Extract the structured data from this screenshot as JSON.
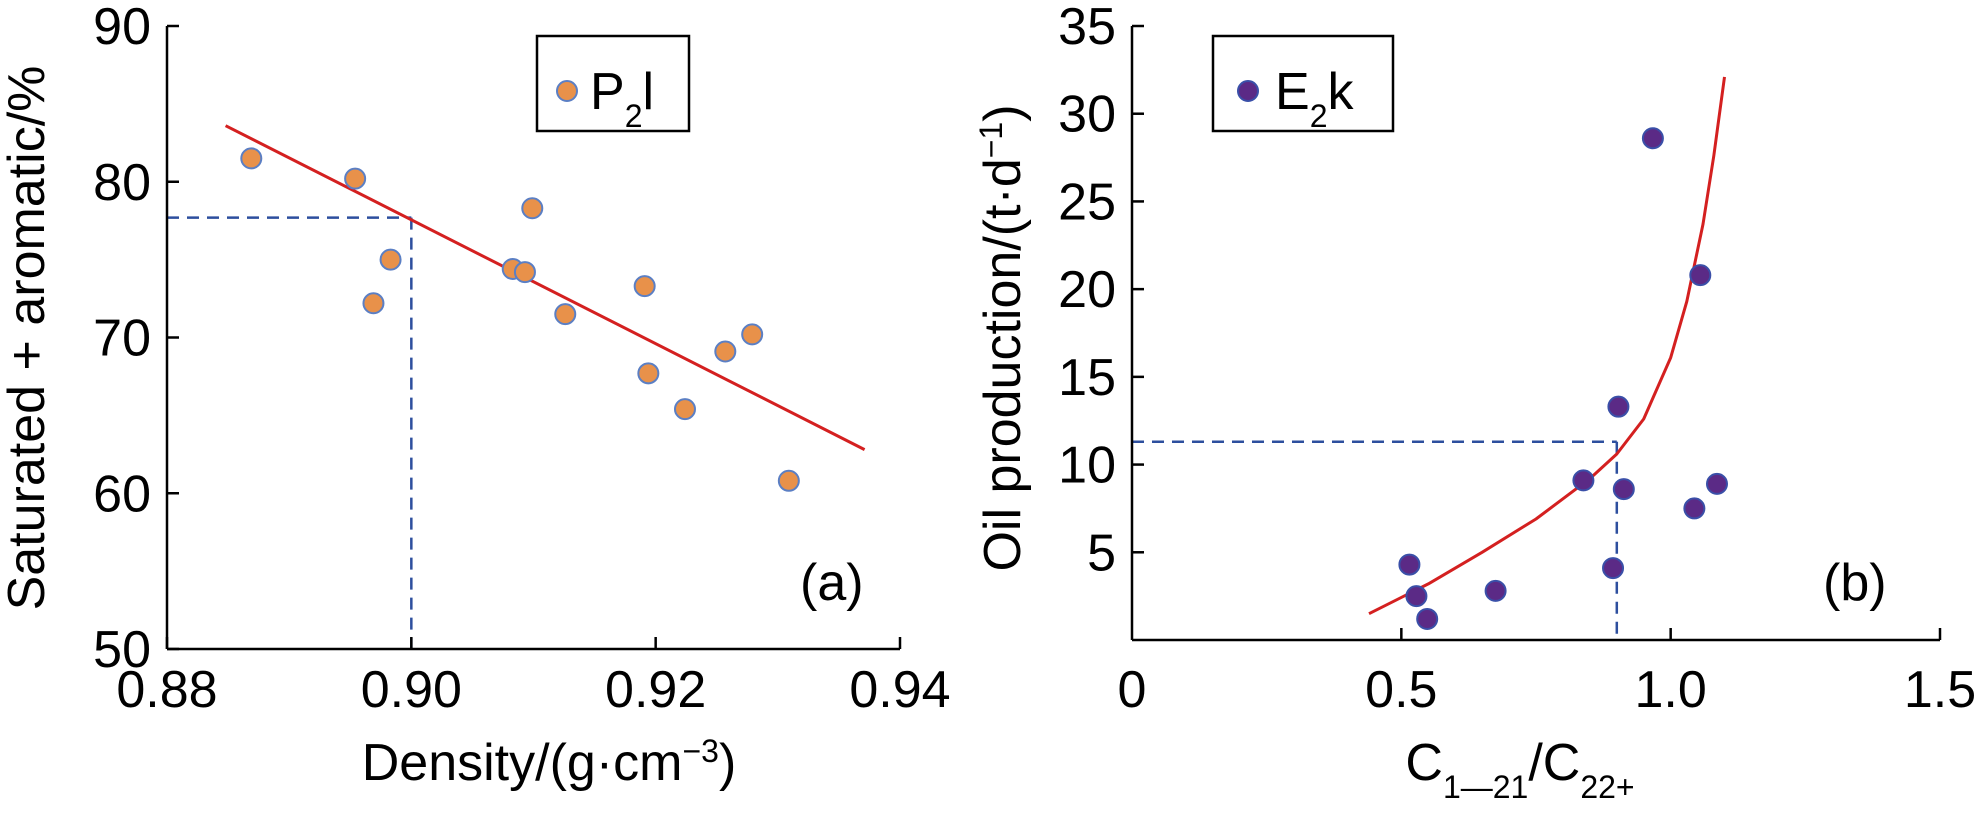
{
  "chart_data": [
    {
      "type": "scatter",
      "panel_label": "(a)",
      "xlabel": {
        "text": "Density/(g·cm",
        "sup": "−3",
        "suffix": ")"
      },
      "ylabel": "Saturated + aromatic/%",
      "xlim": [
        0.88,
        0.94
      ],
      "ylim": [
        50,
        90
      ],
      "xticks": [
        "0.88",
        "0.90",
        "0.92",
        "0.94"
      ],
      "xtick_values": [
        0.88,
        0.9,
        0.92,
        0.94
      ],
      "yticks": [
        "50",
        "60",
        "70",
        "80",
        "90"
      ],
      "ytick_values": [
        50,
        60,
        70,
        80,
        90
      ],
      "legend": {
        "base": "P",
        "sub": "2",
        "rest": "l",
        "color": "#e8914a",
        "edge": "#5b7fc4",
        "position": "top-center"
      },
      "series": [
        {
          "marker_color": "#e8914a",
          "marker_edge": "#5b7fc4",
          "x": [
            0.8869,
            0.8954,
            0.8969,
            0.8983,
            0.9083,
            0.9093,
            0.9099,
            0.9126,
            0.9191,
            0.9194,
            0.9224,
            0.9257,
            0.9279,
            0.9309
          ],
          "y": [
            81.5,
            80.2,
            72.2,
            75.0,
            74.4,
            74.2,
            78.3,
            71.5,
            73.3,
            67.7,
            65.4,
            69.1,
            70.2,
            60.8
          ]
        }
      ],
      "trendline": {
        "type": "linear",
        "color": "#d42020",
        "x": [
          0.8848,
          0.9371
        ],
        "y": [
          83.6,
          62.8
        ]
      },
      "guide": {
        "color": "#2d4f9e",
        "style": "dashed",
        "x": 0.9,
        "y": 77.7
      }
    },
    {
      "type": "scatter",
      "panel_label": "(b)",
      "xlabel": {
        "base": "C",
        "sub1": "1—21",
        "mid": "/C",
        "sub2": "22+"
      },
      "ylabel": {
        "text": "Oil production/(t·d",
        "sup": "−1",
        "suffix": ")"
      },
      "xlim": [
        0,
        1.5
      ],
      "ylim": [
        0,
        35
      ],
      "xticks": [
        "0",
        "0.5",
        "1.0",
        "1.5"
      ],
      "xtick_values": [
        0,
        0.5,
        1.0,
        1.5
      ],
      "yticks": [
        "5",
        "10",
        "15",
        "20",
        "25",
        "30",
        "35"
      ],
      "ytick_values": [
        5,
        10,
        15,
        20,
        25,
        30,
        35
      ],
      "legend": {
        "base": "E",
        "sub": "2",
        "rest": "k",
        "color": "#5b2a86",
        "edge": "#3a4fa8",
        "position": "top-left"
      },
      "series": [
        {
          "marker_color": "#5b2a86",
          "marker_edge": "#3a4fa8",
          "x": [
            0.515,
            0.528,
            0.548,
            0.675,
            0.838,
            0.893,
            0.903,
            0.913,
            0.967,
            1.044,
            1.055,
            1.086
          ],
          "y": [
            4.3,
            2.5,
            1.2,
            2.8,
            9.1,
            4.1,
            13.3,
            8.6,
            28.6,
            7.5,
            20.8,
            8.9
          ]
        }
      ],
      "trendline": {
        "type": "curve",
        "color": "#d42020",
        "x": [
          0.44,
          0.55,
          0.65,
          0.75,
          0.85,
          0.9,
          0.95,
          1.0,
          1.03,
          1.06,
          1.08,
          1.1
        ],
        "y": [
          1.5,
          3.2,
          5.0,
          6.9,
          9.2,
          10.6,
          12.6,
          16.1,
          19.3,
          23.7,
          27.6,
          32.1
        ]
      },
      "guide": {
        "color": "#2d4f9e",
        "style": "dashed",
        "x": 0.9,
        "y": 11.3
      }
    }
  ]
}
